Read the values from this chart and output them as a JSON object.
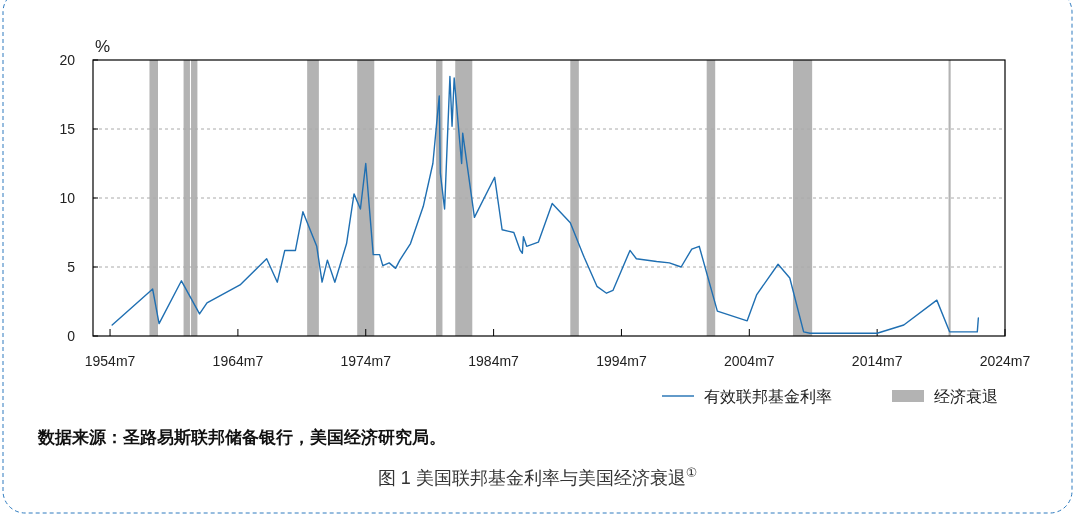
{
  "chart_data": {
    "type": "line",
    "title": "图 1  美国联邦基金利率与美国经济衰退$^{①}$",
    "ylabel": "%",
    "annotations": [
      "数据来源：圣路易斯联邦储备银行，美国经济研究局。"
    ],
    "xlim": [
      "1953-03",
      "2024-07"
    ],
    "xticks": [
      {
        "value": "1954-07",
        "label": "1954m7"
      },
      {
        "value": "1964-07",
        "label": "1964m7"
      },
      {
        "value": "1974-07",
        "label": "1974m7"
      },
      {
        "value": "1984-07",
        "label": "1984m7"
      },
      {
        "value": "1994-07",
        "label": "1994m7"
      },
      {
        "value": "2004-07",
        "label": "2004m7"
      },
      {
        "value": "2014-07",
        "label": "2014m7"
      },
      {
        "value": "2024-07",
        "label": "2024m7"
      }
    ],
    "ylim": [
      0,
      20
    ],
    "yticks": [
      0,
      5,
      10,
      15,
      20
    ],
    "grid": "y",
    "legend": "bottom right",
    "series": [
      {
        "name": "有效联邦基金利率",
        "color": "#1f6fb2",
        "x": [
          "1954-09",
          "1957-11",
          "1958-05",
          "1960-02",
          "1961-07",
          "1962-02",
          "1964-09",
          "1966-10",
          "1967-08",
          "1968-03",
          "1969-01",
          "1969-08",
          "1970-09",
          "1971-02",
          "1971-07",
          "1972-02",
          "1973-01",
          "1973-08",
          "1974-02",
          "1974-07",
          "1975-02",
          "1975-08",
          "1975-11",
          "1976-05",
          "1976-11",
          "1977-03",
          "1978-01",
          "1979-01",
          "1979-10",
          "1980-04",
          "1980-05",
          "1980-09",
          "1981-02",
          "1981-04",
          "1981-06",
          "1982-01",
          "1982-02",
          "1983-01",
          "1984-08",
          "1985-03",
          "1986-02",
          "1986-08",
          "1986-10",
          "1986-11",
          "1987-02",
          "1988-01",
          "1989-02",
          "1990-07",
          "1991-08",
          "1992-08",
          "1993-05",
          "1993-11",
          "1995-03",
          "1995-09",
          "1997-04",
          "1998-04",
          "1999-03",
          "2000-01",
          "2000-08",
          "2002-01",
          "2004-05",
          "2005-02",
          "2006-10",
          "2007-09",
          "2008-10",
          "2009-04",
          "2014-07",
          "2016-08",
          "2019-03",
          "2020-03",
          "2022-05",
          "2022-06"
        ],
        "values": [
          0.8,
          3.4,
          0.9,
          4.0,
          1.6,
          2.4,
          3.7,
          5.6,
          3.9,
          6.2,
          6.2,
          9.0,
          6.5,
          3.9,
          5.5,
          3.9,
          6.7,
          10.3,
          9.2,
          12.5,
          5.9,
          5.9,
          5.1,
          5.3,
          4.9,
          5.5,
          6.7,
          9.4,
          12.5,
          17.4,
          11.8,
          9.2,
          18.8,
          15.2,
          18.7,
          12.5,
          14.7,
          8.6,
          11.5,
          7.7,
          7.5,
          6.2,
          6.0,
          7.2,
          6.5,
          6.8,
          9.6,
          8.2,
          5.7,
          3.6,
          3.1,
          3.3,
          6.2,
          5.6,
          5.4,
          5.3,
          5.0,
          6.3,
          6.5,
          1.8,
          1.1,
          3.0,
          5.2,
          4.2,
          0.3,
          0.2,
          0.2,
          0.8,
          2.6,
          0.3,
          0.3,
          1.3
        ]
      }
    ],
    "bands": [
      {
        "axis": "x",
        "from": "1957-08",
        "to": "1958-04",
        "label": "经济衰退",
        "color": "#b3b3b3"
      },
      {
        "axis": "x",
        "from": "1960-04",
        "to": "1960-10",
        "color": "#b3b3b3"
      },
      {
        "axis": "x",
        "from": "1960-11",
        "to": "1961-05",
        "color": "#b3b3b3"
      },
      {
        "axis": "x",
        "from": "1969-12",
        "to": "1970-11",
        "color": "#b3b3b3"
      },
      {
        "axis": "x",
        "from": "1973-11",
        "to": "1975-03",
        "color": "#b3b3b3"
      },
      {
        "axis": "x",
        "from": "1980-01",
        "to": "1980-07",
        "color": "#b3b3b3"
      },
      {
        "axis": "x",
        "from": "1981-07",
        "to": "1982-11",
        "color": "#b3b3b3"
      },
      {
        "axis": "x",
        "from": "1990-07",
        "to": "1991-03",
        "color": "#b3b3b3"
      },
      {
        "axis": "x",
        "from": "2001-03",
        "to": "2001-11",
        "color": "#b3b3b3"
      },
      {
        "axis": "x",
        "from": "2007-12",
        "to": "2009-06",
        "color": "#b3b3b3"
      },
      {
        "axis": "x",
        "from": "2020-02",
        "to": "2020-04",
        "color": "#b3b3b3"
      }
    ]
  }
}
